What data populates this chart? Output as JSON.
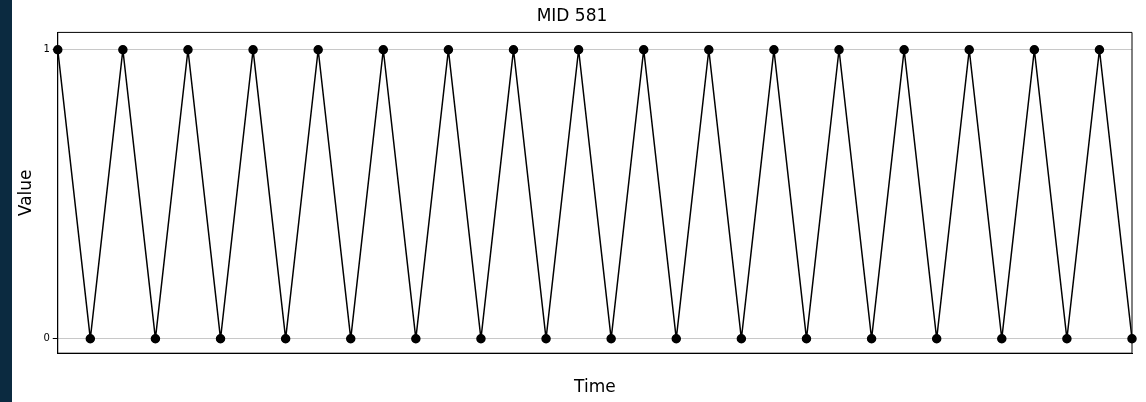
{
  "chart_data": {
    "type": "line",
    "title": "MID 581",
    "xlabel": "Time",
    "ylabel": "Value",
    "categories": [
      null,
      null,
      null,
      null,
      null,
      null,
      null,
      null,
      null,
      null,
      null,
      null,
      null,
      null,
      null,
      null,
      null,
      null,
      null,
      null,
      null,
      null,
      null,
      null,
      null,
      null,
      null,
      null,
      null,
      null,
      null,
      null,
      null,
      null
    ],
    "series": [
      {
        "color": "#000000",
        "values": [
          1,
          0,
          1,
          0,
          1,
          0,
          1,
          0,
          1,
          0,
          1,
          0,
          1,
          0,
          1,
          0,
          1,
          0,
          1,
          0,
          1,
          0,
          1,
          0,
          1,
          0,
          1,
          0,
          1,
          0,
          1,
          0,
          1,
          0
        ]
      }
    ],
    "ylim": [
      -0.05,
      1.06
    ],
    "yticks": [
      0,
      1
    ],
    "grid": "y",
    "marker": "circle",
    "line_style": "solid",
    "legend": false
  }
}
